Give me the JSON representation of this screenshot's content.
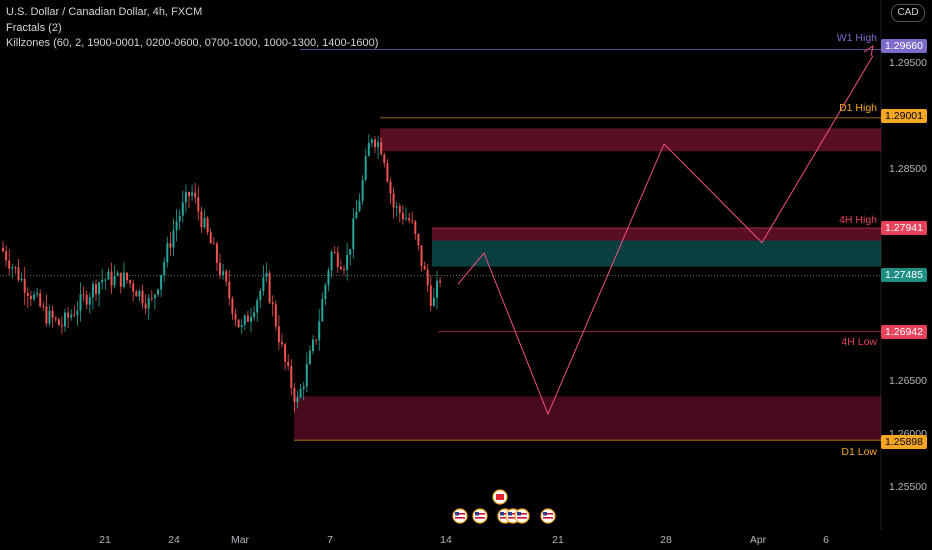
{
  "legend": {
    "symbol": "U.S. Dollar / Canadian Dollar, 4h, FXCM",
    "fractals": "Fractals (2)",
    "killzones": "Killzones (60, 2, 1900-0001, 0200-0600, 0700-1000, 1000-1300, 1400-1600)"
  },
  "currency": "CAD",
  "colors": {
    "up": "#26a69a",
    "down": "#ef5350",
    "zone": "#ff2d6f",
    "projection": "#f0507a",
    "w1": "#7e6bc9",
    "d1": "#f5a623",
    "h4high": "#e8435a",
    "h4low": "#e8435a",
    "price": "#1f8f84"
  },
  "levels": {
    "w1_high": {
      "label": "W1 High",
      "price": "1.29660"
    },
    "d1_high": {
      "label": "D1 High",
      "price": "1.29001"
    },
    "h4_high": {
      "label": "4H High",
      "price": "1.27941"
    },
    "last_price": "1.27485",
    "h4_low": {
      "label": "4H Low",
      "price": "1.26942"
    },
    "d1_low": {
      "label": "D1 Low",
      "price": "1.25898"
    }
  },
  "y_axis": [
    "1.29500",
    "1.29000",
    "1.28500",
    "1.28000",
    "1.27500",
    "1.27000",
    "1.26500",
    "1.26000",
    "1.25500"
  ],
  "x_axis": [
    "21",
    "24",
    "Mar",
    "7",
    "14",
    "21",
    "28",
    "Apr",
    "6"
  ],
  "event_icons": [
    "us-flag",
    "us-flag",
    "ca-flag",
    "us-flag",
    "us-flag",
    "us-flag",
    "us-flag"
  ],
  "chart_data": {
    "type": "candlestick",
    "title": "U.S. Dollar / Canadian Dollar, 4h, FXCM",
    "ylim": [
      1.252,
      1.299
    ],
    "series": [
      {
        "name": "projection",
        "x": [
          "Mar 14",
          "Mar 15",
          "Mar 20",
          "Mar 28",
          "Apr 1",
          "Apr 9"
        ],
        "values": [
          1.274,
          1.277,
          1.2615,
          1.2875,
          1.278,
          1.296
        ]
      }
    ],
    "zones": [
      {
        "name": "supply",
        "from": 1.2868,
        "to": 1.289
      },
      {
        "name": "mid",
        "from": 1.2782,
        "to": 1.2794
      },
      {
        "name": "demand-teal",
        "from": 1.2757,
        "to": 1.2782
      },
      {
        "name": "demand",
        "from": 1.259,
        "to": 1.2632
      }
    ]
  }
}
